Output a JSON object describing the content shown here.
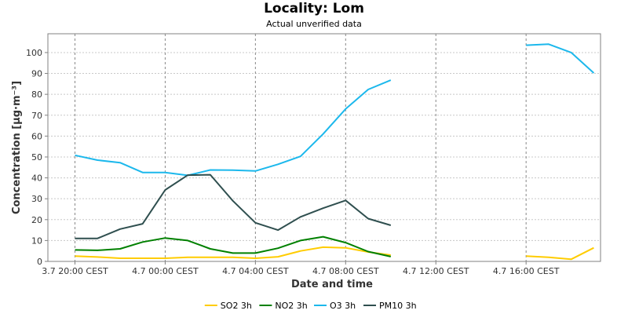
{
  "chart_data": {
    "type": "line",
    "title": "Locality: Lom",
    "subtitle": "Actual unverified data",
    "xlabel": "Date and time",
    "ylabel": "Concentration [µg·m⁻³]",
    "x_tick_labels": [
      "3.7 20:00 CEST",
      "4.7 00:00 CEST",
      "4.7 04:00 CEST",
      "4.7 08:00 CEST",
      "4.7 12:00 CEST",
      "4.7 16:00 CEST"
    ],
    "x_tick_hours": [
      0,
      4,
      8,
      12,
      16,
      20
    ],
    "xlim_hours": [
      -1.2,
      23.3
    ],
    "x_unit_note": "hours after 3.7 20:00 CEST",
    "y_ticks": [
      0,
      10,
      20,
      30,
      40,
      50,
      60,
      70,
      80,
      90,
      100
    ],
    "ylim": [
      0,
      109
    ],
    "grid": true,
    "legend_position": "bottom",
    "series": [
      {
        "name": "SO2 3h",
        "color": "#ffcc00",
        "points": [
          [
            0,
            2.5
          ],
          [
            1,
            2.1
          ],
          [
            2,
            1.5
          ],
          [
            3,
            1.5
          ],
          [
            4,
            1.5
          ],
          [
            5,
            2
          ],
          [
            6,
            2
          ],
          [
            7,
            2
          ],
          [
            8,
            1.5
          ],
          [
            9,
            2.2
          ],
          [
            10,
            5
          ],
          [
            11,
            6.8
          ],
          [
            12,
            6.5
          ],
          [
            13,
            4.5
          ],
          [
            14,
            3
          ],
          null,
          [
            20,
            2.5
          ],
          [
            21,
            2
          ],
          [
            22,
            1
          ],
          [
            23,
            6.5
          ]
        ]
      },
      {
        "name": "NO2 3h",
        "color": "#008000",
        "points": [
          [
            0,
            5.5
          ],
          [
            1,
            5.3
          ],
          [
            2,
            6
          ],
          [
            3,
            9.3
          ],
          [
            4,
            11.2
          ],
          [
            5,
            10
          ],
          [
            6,
            6
          ],
          [
            7,
            4
          ],
          [
            8,
            4
          ],
          [
            9,
            6.3
          ],
          [
            10,
            10
          ],
          [
            11,
            11.8
          ],
          [
            12,
            9
          ],
          [
            13,
            4.7
          ],
          [
            14,
            2.3
          ]
        ]
      },
      {
        "name": "O3 3h",
        "color": "#1cb8ec",
        "points": [
          [
            0,
            50.8
          ],
          [
            1,
            48.5
          ],
          [
            2,
            47.3
          ],
          [
            3,
            42.6
          ],
          [
            4,
            42.6
          ],
          [
            5,
            41.2
          ],
          [
            6,
            43.8
          ],
          [
            7,
            43.7
          ],
          [
            8,
            43.3
          ],
          [
            9,
            46.5
          ],
          [
            10,
            50.3
          ],
          [
            11,
            61
          ],
          [
            12,
            73
          ],
          [
            13,
            82.3
          ],
          [
            14,
            86.8
          ],
          null,
          [
            20,
            103.5
          ],
          [
            21,
            104
          ],
          [
            22,
            100
          ],
          [
            23,
            90.2
          ]
        ]
      },
      {
        "name": "PM10 3h",
        "color": "#2f4f4f",
        "points": [
          [
            0,
            11
          ],
          [
            1,
            11
          ],
          [
            2,
            15.5
          ],
          [
            3,
            18
          ],
          [
            4,
            34.2
          ],
          [
            5,
            41.3
          ],
          [
            6,
            41.5
          ],
          [
            7,
            29
          ],
          [
            8,
            18.5
          ],
          [
            9,
            15
          ],
          [
            10,
            21.3
          ],
          [
            11,
            25.5
          ],
          [
            12,
            29.2
          ],
          [
            13,
            20.5
          ],
          [
            14,
            17.3
          ]
        ]
      }
    ]
  }
}
